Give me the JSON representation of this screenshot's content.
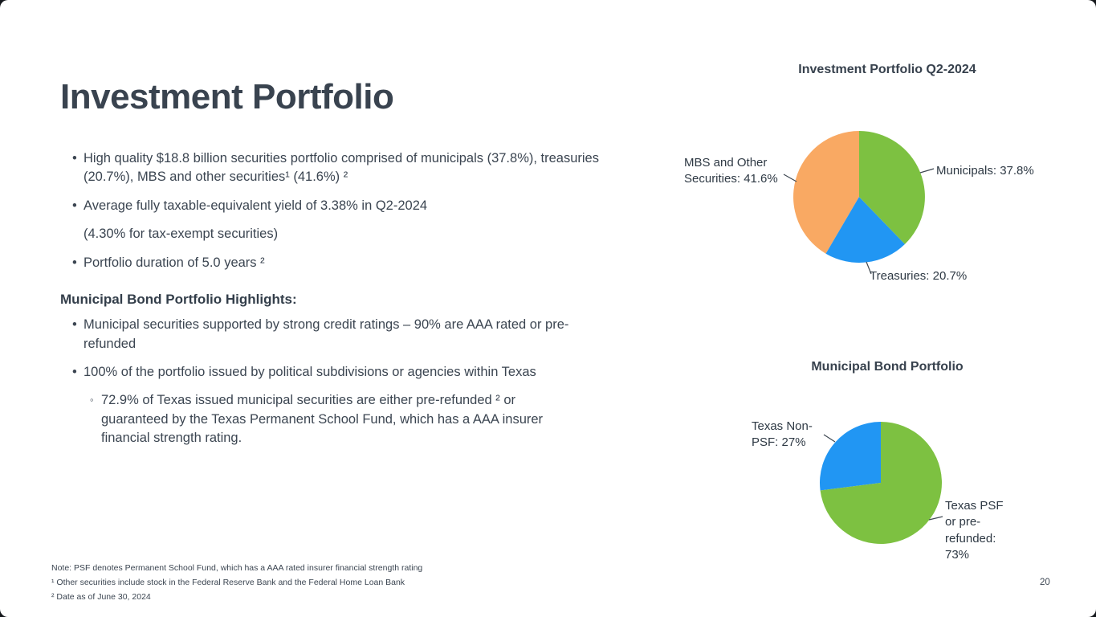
{
  "slide": {
    "title": "Investment Portfolio",
    "page_number": "20"
  },
  "markers": {
    "bullet": "•",
    "sub": "◦"
  },
  "bullets": {
    "b1": "High quality $18.8 billion securities portfolio comprised of municipals (37.8%), treasuries (20.7%), MBS and other securities¹ (41.6%) ²",
    "b2": "Average fully taxable-equivalent yield of 3.38% in Q2-2024",
    "b2_cont": "(4.30% for tax-exempt securities)",
    "b3": "Portfolio duration of 5.0 years ²"
  },
  "highlights": {
    "heading": "Municipal Bond Portfolio Highlights:",
    "h1": "Municipal securities supported by strong credit ratings – 90% are AAA rated or pre-refunded",
    "h2": "100% of the portfolio issued by political subdivisions or agencies within Texas",
    "h3": "72.9% of Texas issued municipal securities are either pre-refunded ² or guaranteed by the Texas Permanent School Fund, which has a AAA insurer financial strength rating."
  },
  "notes": {
    "n1": "Note: PSF denotes Permanent School Fund, which has a AAA rated insurer financial strength rating",
    "n2": "¹ Other securities include stock in the Federal Reserve Bank and the Federal Home Loan Bank",
    "n3": "² Date as of June 30, 2024"
  },
  "chart_data": [
    {
      "type": "pie",
      "title": "Investment Portfolio Q2-2024",
      "labels": [
        "Municipals: 37.8%",
        "Treasuries: 20.7%",
        "MBS and Other Securities: 41.6%"
      ],
      "values": [
        37.8,
        20.7,
        41.6
      ],
      "colors": [
        "#7dc141",
        "#2196f3",
        "#f9a963"
      ],
      "start_angle_deg": 0,
      "direction": "clockwise",
      "legend": "callout-labels"
    },
    {
      "type": "pie",
      "title": "Municipal Bond Portfolio",
      "labels": [
        "Texas PSF or pre-refunded: 73%",
        "Texas Non-PSF: 27%"
      ],
      "values": [
        73,
        27
      ],
      "colors": [
        "#7dc141",
        "#2196f3"
      ],
      "start_angle_deg": 0,
      "direction": "clockwise",
      "legend": "callout-labels"
    }
  ]
}
